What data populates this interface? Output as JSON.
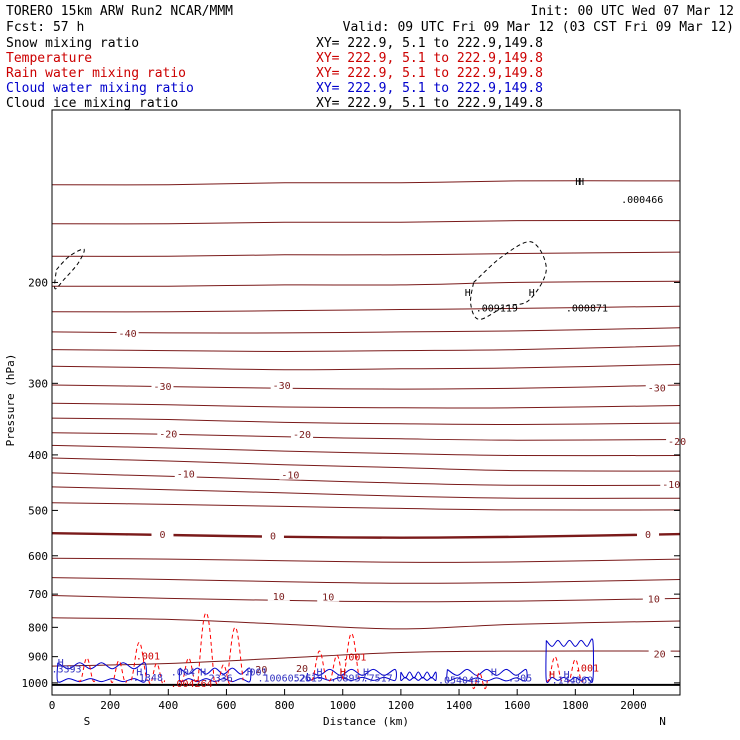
{
  "header": {
    "model": "TORERO   15km ARW    Run2     NCAR/MMM",
    "init": "Init: 00 UTC Wed 07 Mar 12",
    "fcst": "Fcst:   57 h",
    "valid": "Valid: 09 UTC Fri 09 Mar 12 (03 CST Fri 09 Mar 12)"
  },
  "legend": [
    {
      "name": "Snow mixing ratio",
      "xy": "XY= 222.9,  5.1 to 222.9,149.8",
      "color": "#000000"
    },
    {
      "name": "Temperature",
      "xy": "XY= 222.9,  5.1 to 222.9,149.8",
      "color": "#cc0000"
    },
    {
      "name": "Rain water mixing ratio",
      "xy": "XY= 222.9,  5.1 to 222.9,149.8",
      "color": "#cc0000"
    },
    {
      "name": "Cloud water mixing ratio",
      "xy": "XY= 222.9,  5.1 to 222.9,149.8",
      "color": "#0000cc"
    },
    {
      "name": "Cloud ice mixing ratio",
      "xy": "XY= 222.9,  5.1 to 222.9,149.8",
      "color": "#000000"
    }
  ],
  "colors": {
    "temperature": "#7a1a1a",
    "rain": "#ff0000",
    "cloud_water": "#0000cc",
    "ice": "#000000",
    "rain_label": "#cc0000",
    "cloud_label": "#3030c0"
  },
  "chart_data": {
    "type": "line",
    "xlabel": "Distance (km)",
    "ylabel": "Pressure (hPa)",
    "xlim": [
      0,
      2160
    ],
    "ylim": [
      1050,
      100
    ],
    "y_scale": "log",
    "xticks": [
      0,
      200,
      400,
      600,
      800,
      1000,
      1200,
      1400,
      1600,
      1800,
      2000
    ],
    "yticks": [
      200,
      300,
      400,
      500,
      600,
      700,
      800,
      900,
      1000
    ],
    "endpoint_labels": {
      "start": "S",
      "end": "N"
    },
    "ground_pressure": 1008,
    "isotherms": [
      {
        "level": -50,
        "p": [
          135,
          135,
          134,
          134,
          133,
          133
        ],
        "x": [
          0,
          400,
          800,
          1200,
          1600,
          2160
        ]
      },
      {
        "level": -48,
        "p": [
          158,
          158,
          157,
          157,
          156,
          156
        ],
        "x": [
          0,
          400,
          800,
          1200,
          1600,
          2160
        ]
      },
      {
        "level": -46,
        "p": [
          180,
          180,
          179,
          179,
          178,
          177
        ],
        "x": [
          0,
          400,
          800,
          1200,
          1600,
          2160
        ]
      },
      {
        "level": -44,
        "p": [
          203,
          203,
          202,
          202,
          200,
          199
        ],
        "x": [
          0,
          400,
          800,
          1200,
          1600,
          2160
        ]
      },
      {
        "level": -42,
        "p": [
          225,
          225,
          224,
          223,
          222,
          220
        ],
        "x": [
          0,
          400,
          800,
          1200,
          1600,
          2160
        ]
      },
      {
        "level": -40,
        "p": [
          244,
          245,
          245,
          244,
          243,
          240
        ],
        "x": [
          0,
          400,
          800,
          1200,
          1600,
          2160
        ]
      },
      {
        "level": -38,
        "p": [
          262,
          263,
          264,
          263,
          262,
          258
        ],
        "x": [
          0,
          400,
          800,
          1200,
          1600,
          2160
        ]
      },
      {
        "level": -35,
        "p": [
          280,
          282,
          284,
          283,
          282,
          278
        ],
        "x": [
          0,
          400,
          800,
          1200,
          1600,
          2160
        ]
      },
      {
        "level": -30,
        "p": [
          302,
          304,
          306,
          307,
          306,
          302
        ],
        "x": [
          0,
          400,
          800,
          1200,
          1600,
          2160
        ]
      },
      {
        "level": -27,
        "p": [
          325,
          327,
          330,
          331,
          331,
          328
        ],
        "x": [
          0,
          400,
          800,
          1200,
          1600,
          2160
        ]
      },
      {
        "level": -24,
        "p": [
          345,
          347,
          351,
          353,
          354,
          352
        ],
        "x": [
          0,
          400,
          800,
          1200,
          1600,
          2160
        ]
      },
      {
        "level": -20,
        "p": [
          366,
          368,
          372,
          375,
          377,
          376
        ],
        "x": [
          0,
          400,
          800,
          1200,
          1600,
          2160
        ]
      },
      {
        "level": -17,
        "p": [
          385,
          389,
          394,
          398,
          401,
          401
        ],
        "x": [
          0,
          400,
          800,
          1200,
          1600,
          2160
        ]
      },
      {
        "level": -14,
        "p": [
          405,
          410,
          416,
          421,
          426,
          427
        ],
        "x": [
          0,
          400,
          800,
          1200,
          1600,
          2160
        ]
      },
      {
        "level": -10,
        "p": [
          430,
          436,
          442,
          448,
          452,
          452
        ],
        "x": [
          0,
          400,
          800,
          1200,
          1600,
          2160
        ]
      },
      {
        "level": -7,
        "p": [
          455,
          460,
          466,
          472,
          476,
          476
        ],
        "x": [
          0,
          400,
          800,
          1200,
          1600,
          2160
        ]
      },
      {
        "level": -3,
        "p": [
          485,
          488,
          492,
          496,
          499,
          499
        ],
        "x": [
          0,
          400,
          800,
          1200,
          1600,
          2160
        ]
      },
      {
        "level": 0,
        "p": [
          548,
          552,
          556,
          558,
          556,
          550
        ],
        "x": [
          0,
          400,
          800,
          1200,
          1600,
          2160
        ]
      },
      {
        "level": 3,
        "p": [
          606,
          608,
          612,
          616,
          615,
          608
        ],
        "x": [
          0,
          400,
          800,
          1200,
          1600,
          2160
        ]
      },
      {
        "level": 6,
        "p": [
          655,
          660,
          666,
          670,
          668,
          660
        ],
        "x": [
          0,
          400,
          800,
          1200,
          1600,
          2160
        ]
      },
      {
        "level": 10,
        "p": [
          704,
          712,
          718,
          722,
          720,
          712
        ],
        "x": [
          0,
          400,
          800,
          1200,
          1600,
          2160
        ]
      },
      {
        "level": 14,
        "p": [
          770,
          775,
          790,
          805,
          790,
          780
        ],
        "x": [
          0,
          400,
          800,
          1200,
          1600,
          2160
        ]
      },
      {
        "level": 20,
        "p": [
          935,
          925,
          905,
          885,
          880,
          880
        ],
        "x": [
          0,
          400,
          800,
          1200,
          1600,
          2160
        ]
      }
    ],
    "isotherm_labels": [
      {
        "text": "-40",
        "x": 260,
        "p": 245
      },
      {
        "text": "-30",
        "x": 380,
        "p": 303
      },
      {
        "text": "-30",
        "x": 790,
        "p": 302
      },
      {
        "text": "-30",
        "x": 2080,
        "p": 305
      },
      {
        "text": "-20",
        "x": 400,
        "p": 367
      },
      {
        "text": "-20",
        "x": 860,
        "p": 368
      },
      {
        "text": "-20",
        "x": 2150,
        "p": 378
      },
      {
        "text": "-10",
        "x": 460,
        "p": 431
      },
      {
        "text": "-10",
        "x": 820,
        "p": 433
      },
      {
        "text": "-10",
        "x": 2130,
        "p": 450
      },
      {
        "text": "0",
        "x": 380,
        "p": 550
      },
      {
        "text": "0",
        "x": 760,
        "p": 553
      },
      {
        "text": "0",
        "x": 2050,
        "p": 550
      },
      {
        "text": "10",
        "x": 780,
        "p": 705
      },
      {
        "text": "10",
        "x": 950,
        "p": 707
      },
      {
        "text": "10",
        "x": 2070,
        "p": 713
      },
      {
        "text": "20",
        "x": 720,
        "p": 945
      },
      {
        "text": "20",
        "x": 860,
        "p": 942
      },
      {
        "text": "20",
        "x": 2090,
        "p": 888
      }
    ],
    "rain_spikes": [
      {
        "x": 120,
        "p_top": 905
      },
      {
        "x": 230,
        "p_top": 915
      },
      {
        "x": 300,
        "p_top": 850
      },
      {
        "x": 360,
        "p_top": 925
      },
      {
        "x": 470,
        "p_top": 905
      },
      {
        "x": 530,
        "p_top": 755
      },
      {
        "x": 590,
        "p_top": 930
      },
      {
        "x": 630,
        "p_top": 800
      },
      {
        "x": 920,
        "p_top": 880
      },
      {
        "x": 980,
        "p_top": 895
      },
      {
        "x": 1030,
        "p_top": 820
      },
      {
        "x": 1470,
        "p_top": 960
      },
      {
        "x": 1730,
        "p_top": 900
      },
      {
        "x": 1800,
        "p_top": 910
      }
    ],
    "cloud_water_cells": [
      {
        "x": [
          20,
          320
        ],
        "p_top": 930,
        "p_bot": 995
      },
      {
        "x": [
          440,
          680
        ],
        "p_top": 950,
        "p_bot": 995
      },
      {
        "x": [
          880,
          1180
        ],
        "p_top": 955,
        "p_bot": 990
      },
      {
        "x": [
          1200,
          1320
        ],
        "p_top": 965,
        "p_bot": 990
      },
      {
        "x": [
          1360,
          1630
        ],
        "p_top": 955,
        "p_bot": 992
      },
      {
        "x": [
          1700,
          1860
        ],
        "p_top": 850,
        "p_bot": 990
      }
    ],
    "ice_contours": [
      {
        "x": [
          1450,
          1550,
          1650,
          1700,
          1640,
          1560,
          1470,
          1440,
          1450
        ],
        "p": [
          200,
          180,
          170,
          190,
          215,
          220,
          232,
          218,
          200
        ]
      },
      {
        "x": [
          15,
          60,
          110,
          90,
          40,
          10,
          15
        ],
        "p": [
          190,
          180,
          175,
          185,
          198,
          205,
          190
        ]
      }
    ],
    "maxima_labels": [
      {
        "text": ".000466",
        "x": 2030,
        "p": 143,
        "color": "ice"
      },
      {
        "text": ".009119",
        "x": 1530,
        "p": 221,
        "color": "ice"
      },
      {
        "text": ".000871",
        "x": 1840,
        "p": 221,
        "color": "ice"
      },
      {
        "text": ".001",
        "x": 330,
        "p": 895,
        "color": "rain_label"
      },
      {
        "text": ".001",
        "x": 1040,
        "p": 900,
        "color": "rain_label"
      },
      {
        "text": ".001",
        "x": 1840,
        "p": 940,
        "color": "rain_label"
      },
      {
        "text": ".3393",
        "x": 50,
        "p": 943,
        "color": "cloud_label"
      },
      {
        "text": ".1348",
        "x": 330,
        "p": 977,
        "color": "cloud_label"
      },
      {
        "text": ".004",
        "x": 450,
        "p": 955,
        "color": "cloud_label"
      },
      {
        "text": ".2336",
        "x": 570,
        "p": 978,
        "color": "cloud_label"
      },
      {
        "text": ".001",
        "x": 700,
        "p": 955,
        "color": "cloud_label"
      },
      {
        "text": ".10060525",
        "x": 800,
        "p": 978,
        "color": "cloud_label"
      },
      {
        "text": ".2619",
        "x": 880,
        "p": 978,
        "color": "cloud_label"
      },
      {
        "text": ".08957",
        "x": 1020,
        "p": 978,
        "color": "cloud_label"
      },
      {
        "text": ".7517",
        "x": 1120,
        "p": 978,
        "color": "cloud_label"
      },
      {
        "text": ".054044",
        "x": 1400,
        "p": 987,
        "color": "cloud_label"
      },
      {
        "text": ".305",
        "x": 1610,
        "p": 978,
        "color": "cloud_label"
      },
      {
        "text": ".144",
        "x": 1760,
        "p": 987,
        "color": "cloud_label"
      },
      {
        "text": ".069",
        "x": 1820,
        "p": 987,
        "color": "cloud_label"
      },
      {
        "text": ".004264",
        "x": 480,
        "p": 1000,
        "color": "rain_label"
      }
    ],
    "h_markers": [
      {
        "x": 1820,
        "p": 133,
        "color": "ice"
      },
      {
        "x": 1810,
        "p": 133,
        "color": "ice"
      },
      {
        "x": 1430,
        "p": 208,
        "color": "ice"
      },
      {
        "x": 1650,
        "p": 208,
        "color": "ice"
      },
      {
        "x": 30,
        "p": 920,
        "color": "cloud_label"
      },
      {
        "x": 300,
        "p": 955,
        "color": "cloud_label"
      },
      {
        "x": 520,
        "p": 955,
        "color": "cloud_label"
      },
      {
        "x": 680,
        "p": 955,
        "color": "cloud_label"
      },
      {
        "x": 920,
        "p": 955,
        "color": "cloud_label"
      },
      {
        "x": 1000,
        "p": 955,
        "color": "rain_label"
      },
      {
        "x": 1080,
        "p": 955,
        "color": "cloud_label"
      },
      {
        "x": 1520,
        "p": 955,
        "color": "cloud_label"
      },
      {
        "x": 1720,
        "p": 965,
        "color": "rain_label"
      },
      {
        "x": 1770,
        "p": 965,
        "color": "cloud_label"
      }
    ]
  }
}
